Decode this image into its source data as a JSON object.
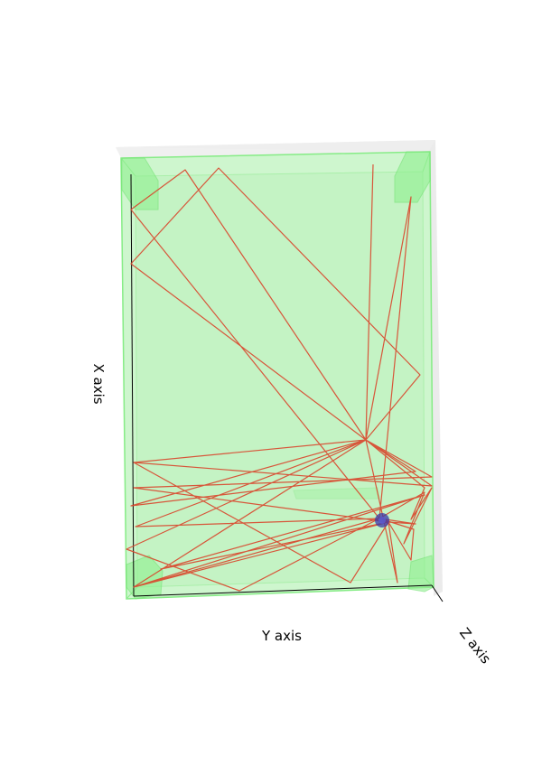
{
  "axes": {
    "x_label": "X axis",
    "y_label": "Y axis",
    "z_label": "Z axis"
  },
  "colors": {
    "box_fill": "#b8f2b8",
    "box_edge": "#7ee87e",
    "corner_block": "#8ff08f",
    "path": "#d9452b",
    "marker": "#3a3aa8",
    "axis_line": "#000000"
  }
}
